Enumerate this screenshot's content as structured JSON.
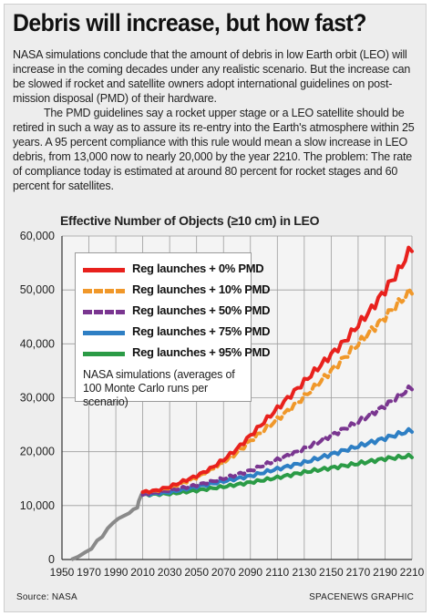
{
  "title": "Debris will increase, but how fast?",
  "paragraphs": [
    "NASA simulations conclude that the amount of debris in low Earth orbit (LEO) will increase in the coming decades under any realistic scenario. But the increase can be slowed if rocket and satellite owners adopt international guidelines on post-mission disposal (PMD) of their hardware.",
    "The PMD guidelines say a rocket upper stage or a LEO satellite should be retired in such a way as to assure its re-entry into the Earth's atmosphere within 25 years. A 95 percent compliance with this rule would mean a slow increase in LEO debris, from 13,000 now to nearly 20,000 by the year 2210. The problem: The rate of compliance today is estimated at around 80 percent for rocket stages and 60 percent for satellites."
  ],
  "chart_title": "Effective Number of Objects (≥10 cm) in LEO",
  "legend_note": "NASA simulations (averages of 100 Monte Carlo runs per scenario)",
  "source": "Source: NASA",
  "credit": "SPACENEWS GRAPHIC",
  "chart_data": {
    "type": "line",
    "title": "Effective Number of Objects (≥10 cm) in LEO",
    "xlabel": "",
    "ylabel": "",
    "xlim": [
      1950,
      2210
    ],
    "ylim": [
      0,
      60000
    ],
    "x_ticks": [
      1950,
      1970,
      1990,
      2010,
      2030,
      2050,
      2070,
      2090,
      2110,
      2130,
      2150,
      2170,
      2190,
      2210
    ],
    "y_ticks": [
      0,
      10000,
      20000,
      30000,
      40000,
      50000,
      60000
    ],
    "x_tick_labels": [
      "1950",
      "1970",
      "1990",
      "2010",
      "2030",
      "2050",
      "2070",
      "2090",
      "2110",
      "2130",
      "2150",
      "2170",
      "2190",
      "2210"
    ],
    "y_tick_labels": [
      "0",
      "10,000",
      "20,000",
      "30,000",
      "40,000",
      "50,000",
      "60,000"
    ],
    "grid": true,
    "legend_position": "top-left",
    "history": {
      "name": "",
      "color": "#8a8a8a",
      "x": [
        1957,
        1962,
        1967,
        1972,
        1976,
        1980,
        1984,
        1988,
        1992,
        1996,
        2000,
        2003,
        2006,
        2007,
        2009,
        2010
      ],
      "y": [
        0,
        500,
        1300,
        2000,
        3500,
        4200,
        5800,
        6800,
        7600,
        8100,
        8600,
        9300,
        9600,
        10800,
        12000,
        12500
      ]
    },
    "series": [
      {
        "name": "Reg launches + 0% PMD",
        "color": "#e8211d",
        "dash": false,
        "x": [
          2010,
          2020,
          2030,
          2040,
          2050,
          2060,
          2070,
          2080,
          2090,
          2100,
          2110,
          2120,
          2130,
          2140,
          2150,
          2160,
          2170,
          2180,
          2190,
          2200,
          2210
        ],
        "y": [
          12500,
          12800,
          13500,
          14500,
          15500,
          16800,
          18500,
          20500,
          23000,
          25500,
          28000,
          30500,
          33000,
          35500,
          38000,
          40500,
          43500,
          46500,
          50000,
          53500,
          58000
        ]
      },
      {
        "name": "Reg launches + 10% PMD",
        "color": "#f0982a",
        "dash": true,
        "x": [
          2010,
          2020,
          2030,
          2040,
          2050,
          2060,
          2070,
          2080,
          2090,
          2100,
          2110,
          2120,
          2130,
          2140,
          2150,
          2160,
          2170,
          2180,
          2190,
          2200,
          2210
        ],
        "y": [
          12500,
          12700,
          13300,
          14200,
          15200,
          16500,
          18000,
          19800,
          22000,
          24000,
          26000,
          28000,
          30200,
          32500,
          35000,
          37500,
          40000,
          42500,
          45000,
          47500,
          50000
        ]
      },
      {
        "name": "Reg launches + 50% PMD",
        "color": "#7a3690",
        "dash": true,
        "x": [
          2010,
          2030,
          2050,
          2070,
          2090,
          2110,
          2130,
          2150,
          2170,
          2190,
          2210
        ],
        "y": [
          12000,
          12800,
          13800,
          15000,
          16500,
          18500,
          20500,
          23000,
          25500,
          28500,
          32000
        ]
      },
      {
        "name": "Reg launches + 75% PMD",
        "color": "#2e7fc4",
        "dash": false,
        "x": [
          2010,
          2030,
          2050,
          2070,
          2090,
          2110,
          2130,
          2150,
          2170,
          2190,
          2210
        ],
        "y": [
          12000,
          12500,
          13500,
          14500,
          15500,
          16800,
          18000,
          19500,
          21000,
          22500,
          24000
        ]
      },
      {
        "name": "Reg launches + 95% PMD",
        "color": "#2b9b46",
        "dash": false,
        "x": [
          2010,
          2030,
          2050,
          2070,
          2090,
          2110,
          2130,
          2150,
          2170,
          2190,
          2210
        ],
        "y": [
          12000,
          12200,
          12800,
          13500,
          14300,
          15200,
          16200,
          17000,
          17800,
          18700,
          19200
        ]
      }
    ]
  }
}
